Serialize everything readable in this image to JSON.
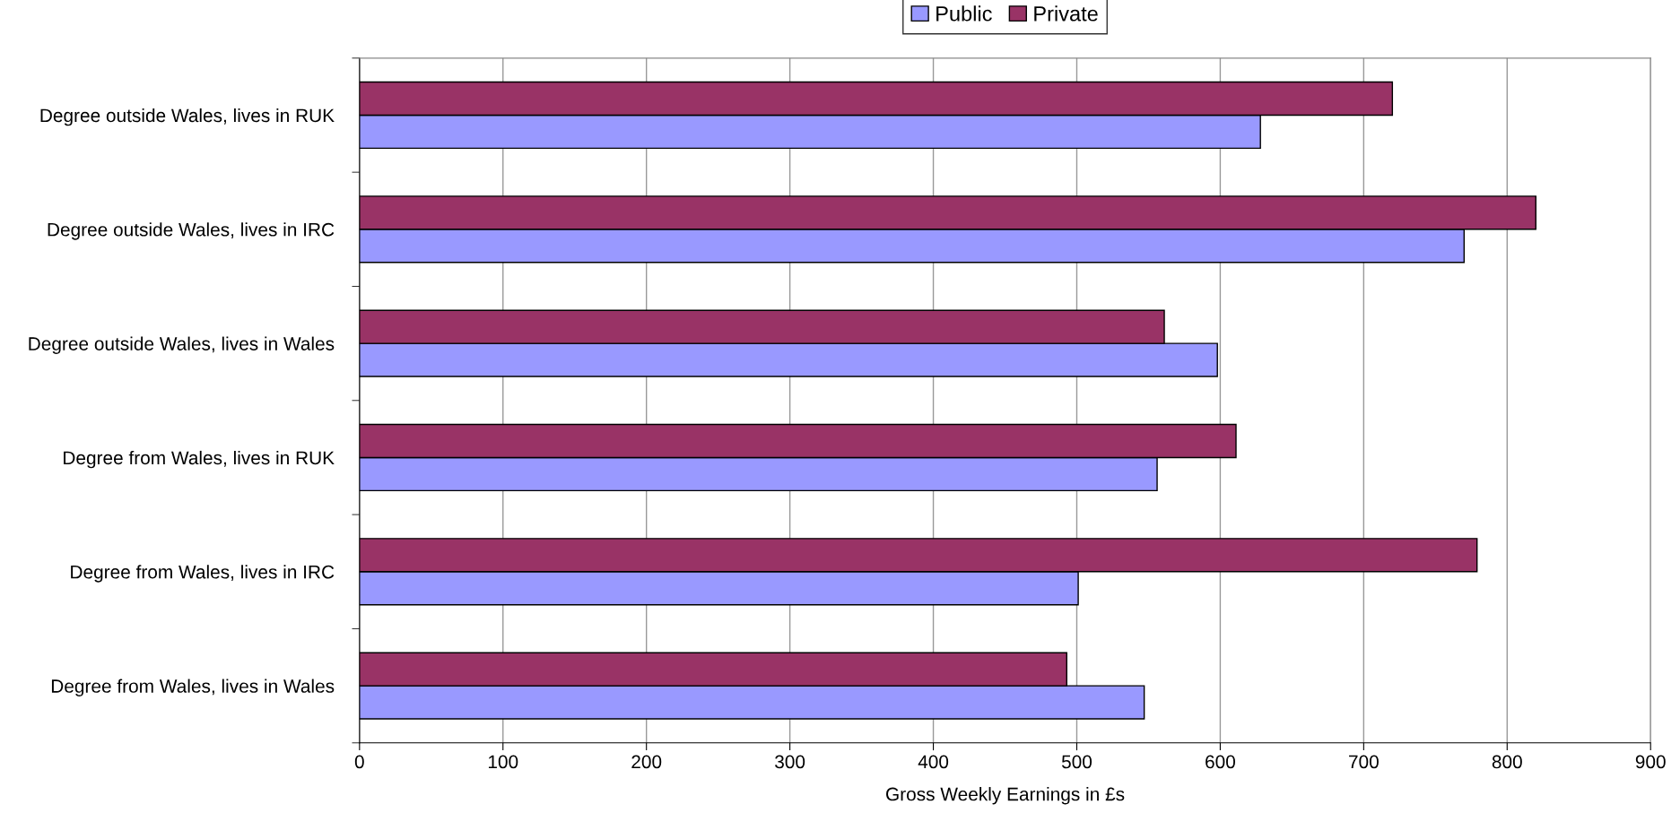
{
  "chart_data": {
    "type": "bar",
    "orientation": "horizontal",
    "xlabel": "Gross Weekly Earnings in £s",
    "categories": [
      "Degree outside Wales, lives in RUK",
      "Degree outside Wales, lives in IRC",
      "Degree outside Wales, lives in Wales",
      "Degree from Wales, lives in RUK",
      "Degree from Wales, lives in IRC",
      "Degree from Wales, lives in Wales"
    ],
    "series": [
      {
        "name": "Public",
        "color": "#9999ff",
        "values": [
          628,
          770,
          598,
          556,
          501,
          547
        ]
      },
      {
        "name": "Private",
        "color": "#993366",
        "values": [
          720,
          820,
          561,
          611,
          779,
          493
        ]
      }
    ],
    "xlim": [
      0,
      900
    ],
    "xticks": [
      0,
      100,
      200,
      300,
      400,
      500,
      600,
      700,
      800,
      900
    ],
    "grid": "x",
    "legend": "top"
  }
}
